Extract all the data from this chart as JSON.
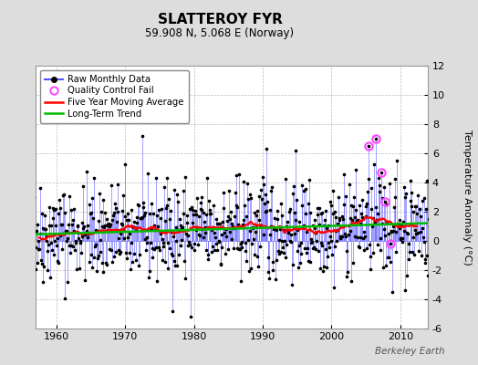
{
  "title": "SLATTEROY FYR",
  "subtitle": "59.908 N, 5.068 E (Norway)",
  "ylabel": "Temperature Anomaly (°C)",
  "xlabel_years": [
    1960,
    1970,
    1980,
    1990,
    2000,
    2010
  ],
  "ylim": [
    -6,
    12
  ],
  "yticks": [
    -6,
    -4,
    -2,
    0,
    2,
    4,
    6,
    8,
    10,
    12
  ],
  "start_year": 1955,
  "end_year": 2015,
  "raw_color": "#5555FF",
  "raw_dot_color": "#000000",
  "ma_color": "#FF0000",
  "trend_color": "#00BB00",
  "qc_color": "#FF44FF",
  "background_color": "#DDDDDD",
  "plot_bg_color": "#FFFFFF",
  "legend_items": [
    "Raw Monthly Data",
    "Quality Control Fail",
    "Five Year Moving Average",
    "Long-Term Trend"
  ],
  "watermark": "Berkeley Earth",
  "trend_slope": 0.012,
  "trend_intercept": -23.0,
  "noise_std": 1.7,
  "seed": 42,
  "qc_times": [
    2005.33,
    2006.5,
    2007.25,
    2007.83,
    2008.5
  ],
  "qc_vals": [
    6.5,
    7.0,
    4.7,
    2.7,
    -0.2
  ],
  "spike_1990_val": 6.3,
  "spike_1979_val": -5.2
}
